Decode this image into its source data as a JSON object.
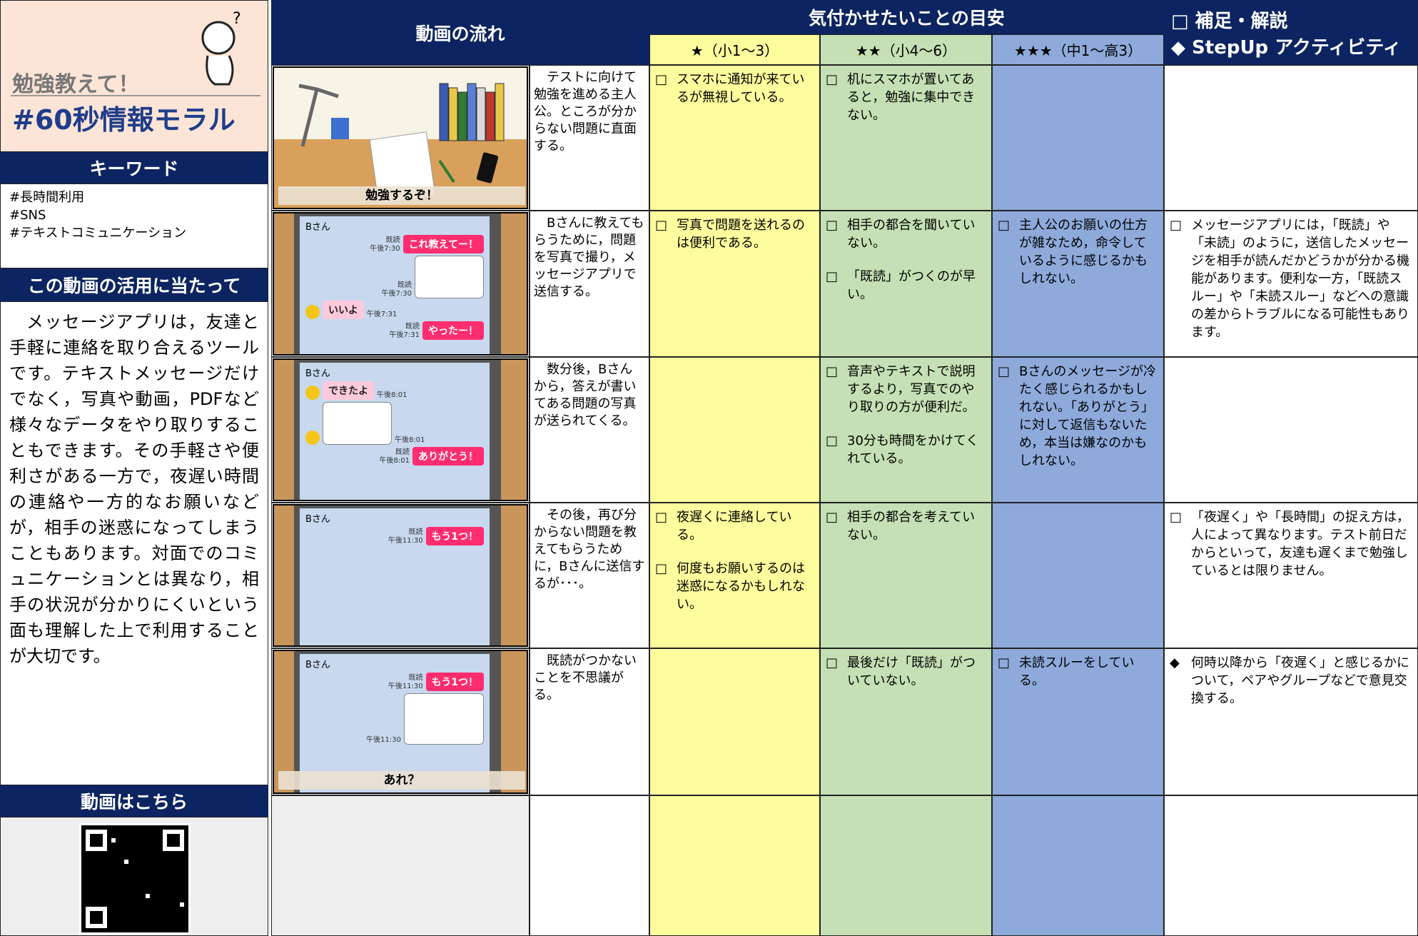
{
  "sidebar": {
    "subtitle": "勉強教えて！",
    "title": "#60秒情報モラル",
    "keywords_heading": "キーワード",
    "keywords": [
      "#長時間利用",
      "#SNS",
      "#テキストコミュニケーション"
    ],
    "usage_heading": "この動画の活用に当たって",
    "usage_text": "メッセージアプリは，友達と手軽に連絡を取り合えるツールです。テキストメッセージだけでなく，写真や動画，PDFなど様々なデータをやり取りすることもできます。その手軽さや便利さがある一方で，夜遅い時間の連絡や一方的なお願いなどが，相手の迷惑になってしまうこともあります。対面でのコミュニケーションとは異なり，相手の状況が分かりにくいという面も理解した上で利用することが大切です。",
    "video_heading": "動画はこちら"
  },
  "table": {
    "flow_heading": "動画の流れ",
    "goals_heading": "気付かせたいことの目安",
    "levels": [
      "★（小1～3）",
      "★★（小4～6）",
      "★★★（中1～高3）"
    ],
    "notes_heading": [
      "□ 補足・解説",
      "◆ StepUp アクティビティ"
    ],
    "rows": [
      {
        "scene": {
          "caption": "勉強するぞ！"
        },
        "description": "テストに向けて勉強を進める主人公。ところが分からない問題に直面する。",
        "level1": [
          {
            "mark": "□",
            "text": "スマホに通知が来ているが無視している。"
          }
        ],
        "level2": [
          {
            "mark": "□",
            "text": "机にスマホが置いてあると，勉強に集中できない。"
          }
        ],
        "level3": [],
        "notes": []
      },
      {
        "scene": {
          "name": "Bさん",
          "messages": [
            {
              "type": "sent",
              "text": "これ教えてー！",
              "read": "既読",
              "time": "午後7:30"
            },
            {
              "type": "image-sent",
              "read": "既読",
              "time": "午後7:30"
            },
            {
              "type": "received",
              "text": "いいよ",
              "time": "午後7:31"
            },
            {
              "type": "sent",
              "text": "やったー！",
              "read": "既読",
              "time": "午後7:31"
            }
          ]
        },
        "description": "Bさんに教えてもらうために，問題を写真で撮り，メッセージアプリで送信する。",
        "level1": [
          {
            "mark": "□",
            "text": "写真で問題を送れるのは便利である。"
          }
        ],
        "level2": [
          {
            "mark": "□",
            "text": "相手の都合を聞いていない。"
          },
          {
            "mark": "□",
            "text": "「既読」がつくのが早い。"
          }
        ],
        "level3": [
          {
            "mark": "□",
            "text": "主人公のお願いの仕方が雑なため，命令しているように感じるかもしれない。"
          }
        ],
        "notes": [
          {
            "mark": "□",
            "text": "メッセージアプリには，「既読」や「未読」のように，送信したメッセージを相手が読んだかどうかが分かる機能があります。便利な一方，「既読スルー」や「未読スルー」などへの意識の差からトラブルになる可能性もあります。"
          }
        ]
      },
      {
        "scene": {
          "name": "Bさん",
          "messages": [
            {
              "type": "received",
              "text": "できたよ",
              "time": "午後8:01"
            },
            {
              "type": "image-received",
              "time": "午後8:01"
            },
            {
              "type": "sent",
              "text": "ありがとう！",
              "read": "既読",
              "time": "午後8:01"
            }
          ]
        },
        "description": "数分後，Bさんから，答えが書いてある問題の写真が送られてくる。",
        "level1": [],
        "level2": [
          {
            "mark": "□",
            "text": "音声やテキストで説明するより，写真でのやり取りの方が便利だ。"
          },
          {
            "mark": "□",
            "text": "30分も時間をかけてくれている。"
          }
        ],
        "level3": [
          {
            "mark": "□",
            "text": "Bさんのメッセージが冷たく感じられるかもしれない。「ありがとう」に対して返信もないため，本当は嫌なのかもしれない。"
          }
        ],
        "notes": []
      },
      {
        "scene": {
          "name": "Bさん",
          "messages": [
            {
              "type": "sent",
              "text": "もう1つ！",
              "read": "既読",
              "time": "午後11:30"
            }
          ]
        },
        "description": "その後，再び分からない問題を教えてもらうために，Bさんに送信するが･･･。",
        "level1": [
          {
            "mark": "□",
            "text": "夜遅くに連絡している。"
          },
          {
            "mark": "□",
            "text": "何度もお願いするのは迷惑になるかもしれない。"
          }
        ],
        "level2": [
          {
            "mark": "□",
            "text": "相手の都合を考えていない。"
          }
        ],
        "level3": [],
        "notes": [
          {
            "mark": "□",
            "text": "「夜遅く」や「長時間」の捉え方は，人によって異なります。テスト前日だからといって，友達も遅くまで勉強しているとは限りません。"
          }
        ]
      },
      {
        "scene": {
          "name": "Bさん",
          "caption": "あれ？",
          "messages": [
            {
              "type": "sent",
              "text": "もう1つ！",
              "read": "既読",
              "time": "午後11:30"
            },
            {
              "type": "image-sent",
              "time": "午後11:30"
            }
          ]
        },
        "description": "既読がつかないことを不思議がる。",
        "level1": [],
        "level2": [
          {
            "mark": "□",
            "text": "最後だけ「既読」がついていない。"
          }
        ],
        "level3": [
          {
            "mark": "□",
            "text": "未読スルーをしている。"
          }
        ],
        "notes": [
          {
            "mark": "◆",
            "text": "何時以降から「夜遅く」と感じるかについて，ペアやグループなどで意見交換する。"
          }
        ]
      }
    ]
  }
}
